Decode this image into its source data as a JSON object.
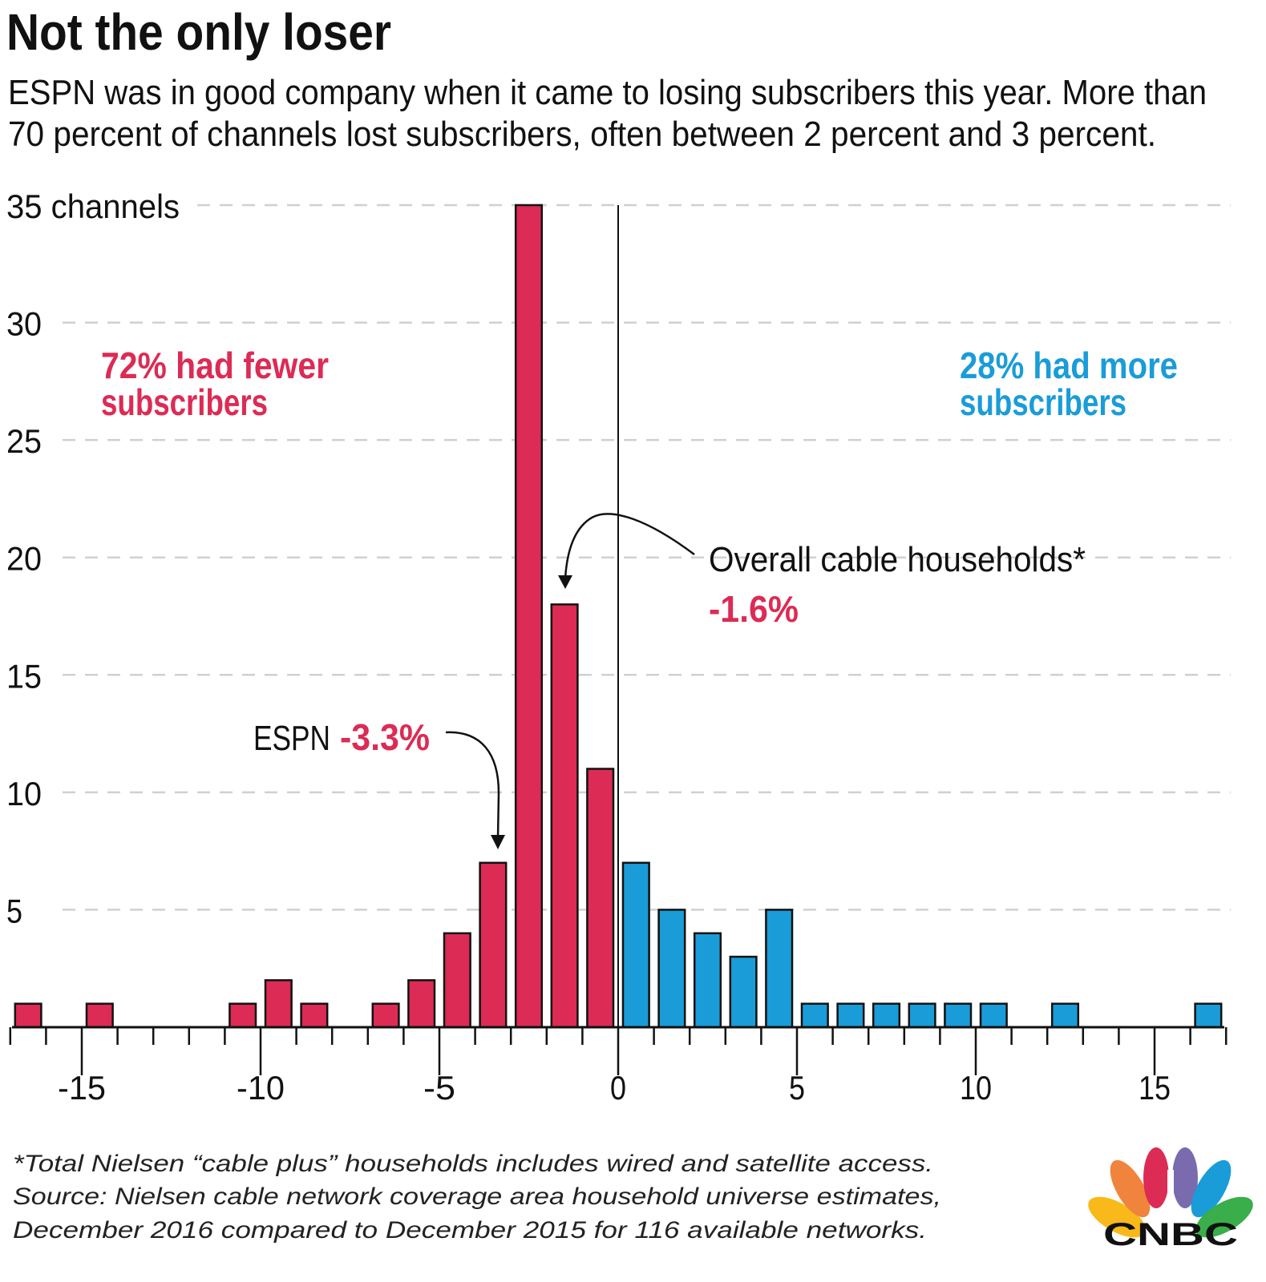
{
  "title": "Not the only loser",
  "subtitle": [
    "ESPN was in good company when it came to losing subscribers this year. More than",
    "70 percent of channels lost subscribers, often between 2 percent and 3 percent."
  ],
  "annotations": {
    "fewer": [
      "72% had fewer",
      "subscribers"
    ],
    "more": [
      "28% had more",
      "subscribers"
    ],
    "overall_label": "Overall cable households*",
    "overall_value": "-1.6%",
    "espn_label": "ESPN",
    "espn_value": "-3.3%"
  },
  "footnote": [
    "*Total Nielsen “cable plus” households includes wired and satellite access.",
    "Source: Nielsen cable network coverage area household universe estimates,",
    "December 2016 compared to December 2015 for 116 available networks."
  ],
  "logo": "CNBC",
  "colors": {
    "negative": "#DC2B54",
    "positive": "#1A9CD8",
    "grid": "#D0D0D0"
  },
  "chart_data": {
    "type": "bar",
    "bin_width": 1,
    "xlim": [
      -17,
      17
    ],
    "ylim": [
      0,
      35
    ],
    "grid": true,
    "xticks": [
      "-15",
      "-10",
      "-5",
      "0",
      "5",
      "10",
      "15"
    ],
    "yticks": [
      "5",
      "10",
      "15",
      "20",
      "25",
      "30",
      "35 channels"
    ],
    "bins": [
      {
        "start": -17,
        "count": 1
      },
      {
        "start": -15,
        "count": 1
      },
      {
        "start": -11,
        "count": 1
      },
      {
        "start": -10,
        "count": 2
      },
      {
        "start": -9,
        "count": 1
      },
      {
        "start": -7,
        "count": 1
      },
      {
        "start": -6,
        "count": 2
      },
      {
        "start": -5,
        "count": 4
      },
      {
        "start": -4,
        "count": 7
      },
      {
        "start": -3,
        "count": 35
      },
      {
        "start": -2,
        "count": 18
      },
      {
        "start": -1,
        "count": 11
      },
      {
        "start": 0,
        "count": 7
      },
      {
        "start": 1,
        "count": 5
      },
      {
        "start": 2,
        "count": 4
      },
      {
        "start": 3,
        "count": 3
      },
      {
        "start": 4,
        "count": 5
      },
      {
        "start": 5,
        "count": 1
      },
      {
        "start": 6,
        "count": 1
      },
      {
        "start": 7,
        "count": 1
      },
      {
        "start": 8,
        "count": 1
      },
      {
        "start": 9,
        "count": 1
      },
      {
        "start": 10,
        "count": 1
      },
      {
        "start": 12,
        "count": 1
      },
      {
        "start": 16,
        "count": 1
      }
    ]
  }
}
